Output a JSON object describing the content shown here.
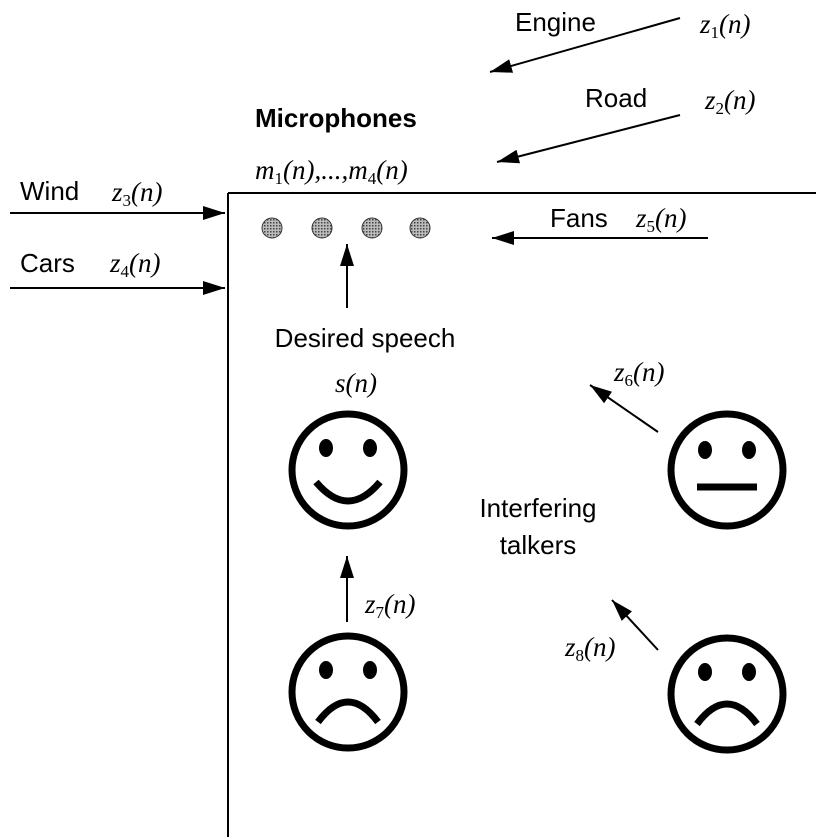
{
  "labels": {
    "engine": "Engine",
    "road": "Road",
    "microphones": "Microphones",
    "wind": "Wind",
    "cars": "Cars",
    "fans": "Fans",
    "desired_speech": "Desired speech",
    "interfering_talkers": [
      "Interfering",
      "talkers"
    ]
  },
  "signals": {
    "z1": {
      "var": "z",
      "sub": "1",
      "arg": "(n)"
    },
    "z2": {
      "var": "z",
      "sub": "2",
      "arg": "(n)"
    },
    "z3": {
      "var": "z",
      "sub": "3",
      "arg": "(n)"
    },
    "z4": {
      "var": "z",
      "sub": "4",
      "arg": "(n)"
    },
    "z5": {
      "var": "z",
      "sub": "5",
      "arg": "(n)"
    },
    "z6": {
      "var": "z",
      "sub": "6",
      "arg": "(n)"
    },
    "z7": {
      "var": "z",
      "sub": "7",
      "arg": "(n)"
    },
    "z8": {
      "var": "z",
      "sub": "8",
      "arg": "(n)"
    },
    "s": {
      "var": "s",
      "arg": "(n)"
    },
    "mics": [
      {
        "var": "m",
        "sub": "1",
        "arg": "(n),...,"
      },
      {
        "var": "m",
        "sub": "4",
        "arg": "(n)"
      }
    ]
  }
}
